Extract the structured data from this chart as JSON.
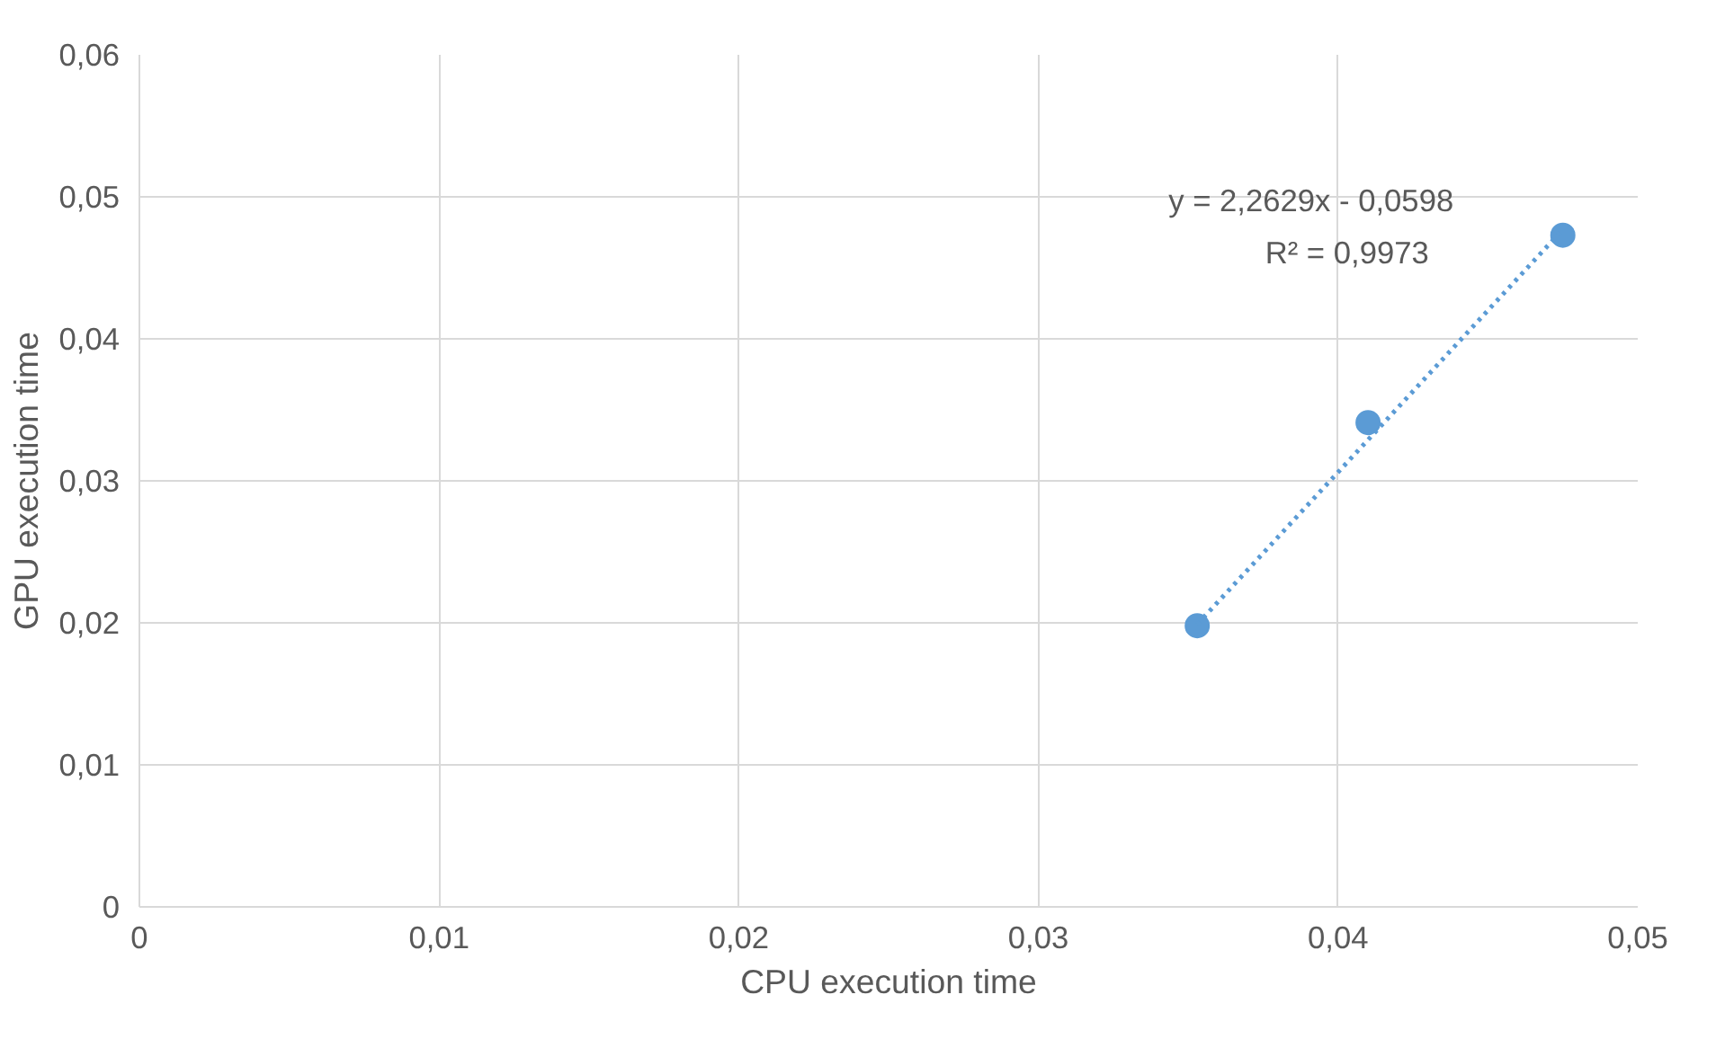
{
  "chart_data": {
    "type": "scatter",
    "xlabel": "CPU execution time",
    "ylabel": "GPU execution time",
    "xlim": [
      0,
      0.05
    ],
    "ylim": [
      0,
      0.06
    ],
    "xticks": [
      0,
      {
        "value": 0.01,
        "label": "0,01"
      },
      {
        "value": 0.02,
        "label": "0,02"
      },
      {
        "value": 0.03,
        "label": "0,03"
      },
      {
        "value": 0.04,
        "label": "0,04"
      },
      {
        "value": 0.05,
        "label": "0,05"
      }
    ],
    "yticks": [
      0,
      {
        "value": 0.01,
        "label": "0,01"
      },
      {
        "value": 0.02,
        "label": "0,02"
      },
      {
        "value": 0.03,
        "label": "0,03"
      },
      {
        "value": 0.04,
        "label": "0,04"
      },
      {
        "value": 0.05,
        "label": "0,05"
      },
      {
        "value": 0.06,
        "label": "0,06"
      }
    ],
    "grid": true,
    "marker": "circle",
    "series": [
      {
        "color": "#5b9bd5",
        "x": [
          0.0353,
          0.041,
          0.0475
        ],
        "values": [
          0.0198,
          0.0341,
          0.0473
        ]
      },
      {
        "type": "line",
        "color": "#5b9bd5",
        "line_style": "dotted",
        "marker": "none",
        "x": [
          0.0353,
          0.0475
        ],
        "values": [
          0.0199,
          0.0477
        ]
      }
    ],
    "annotations": [
      "y = 2,2629x - 0,0598",
      "R² = 0,9973"
    ]
  }
}
